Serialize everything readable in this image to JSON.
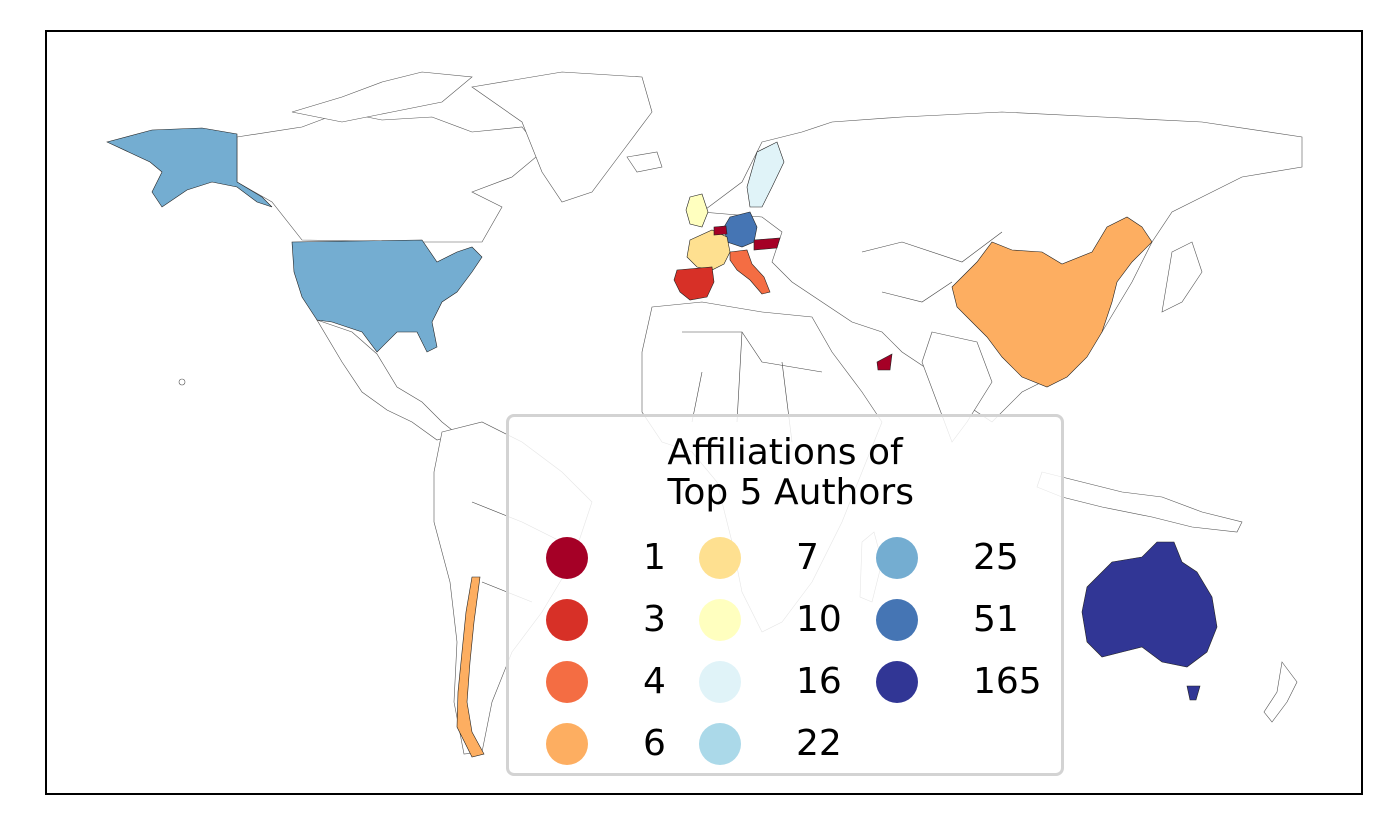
{
  "legend": {
    "title_line1": "Affiliations of",
    "title_line2": " Top 5 Authors",
    "entries": [
      {
        "label": "1",
        "color": "#a50026"
      },
      {
        "label": "3",
        "color": "#d73027"
      },
      {
        "label": "4",
        "color": "#f46d43"
      },
      {
        "label": "6",
        "color": "#fdae61"
      },
      {
        "label": "7",
        "color": "#fee090"
      },
      {
        "label": "10",
        "color": "#ffffbf"
      },
      {
        "label": "16",
        "color": "#e0f3f8"
      },
      {
        "label": "22",
        "color": "#abd9e9"
      },
      {
        "label": "25",
        "color": "#74add1"
      },
      {
        "label": "51",
        "color": "#4575b4"
      },
      {
        "label": "165",
        "color": "#313695"
      }
    ]
  },
  "countries": [
    {
      "name": "United States",
      "count": 25,
      "color": "#74add1"
    },
    {
      "name": "Australia",
      "count": 165,
      "color": "#313695"
    },
    {
      "name": "China",
      "count": 6,
      "color": "#fdae61"
    },
    {
      "name": "Chile",
      "count": 6,
      "color": "#fdae61"
    },
    {
      "name": "Germany",
      "count": 51,
      "color": "#4575b4"
    },
    {
      "name": "France",
      "count": 7,
      "color": "#fee090"
    },
    {
      "name": "Spain",
      "count": 3,
      "color": "#d73027"
    },
    {
      "name": "Italy",
      "count": 4,
      "color": "#f46d43"
    },
    {
      "name": "United Kingdom",
      "count": 10,
      "color": "#ffffbf"
    },
    {
      "name": "Sweden",
      "count": 16,
      "color": "#e0f3f8"
    },
    {
      "name": "Austria",
      "count": 1,
      "color": "#a50026"
    },
    {
      "name": "Switzerland",
      "count": 1,
      "color": "#a50026"
    },
    {
      "name": "United Arab Emirates",
      "count": 1,
      "color": "#a50026"
    }
  ]
}
